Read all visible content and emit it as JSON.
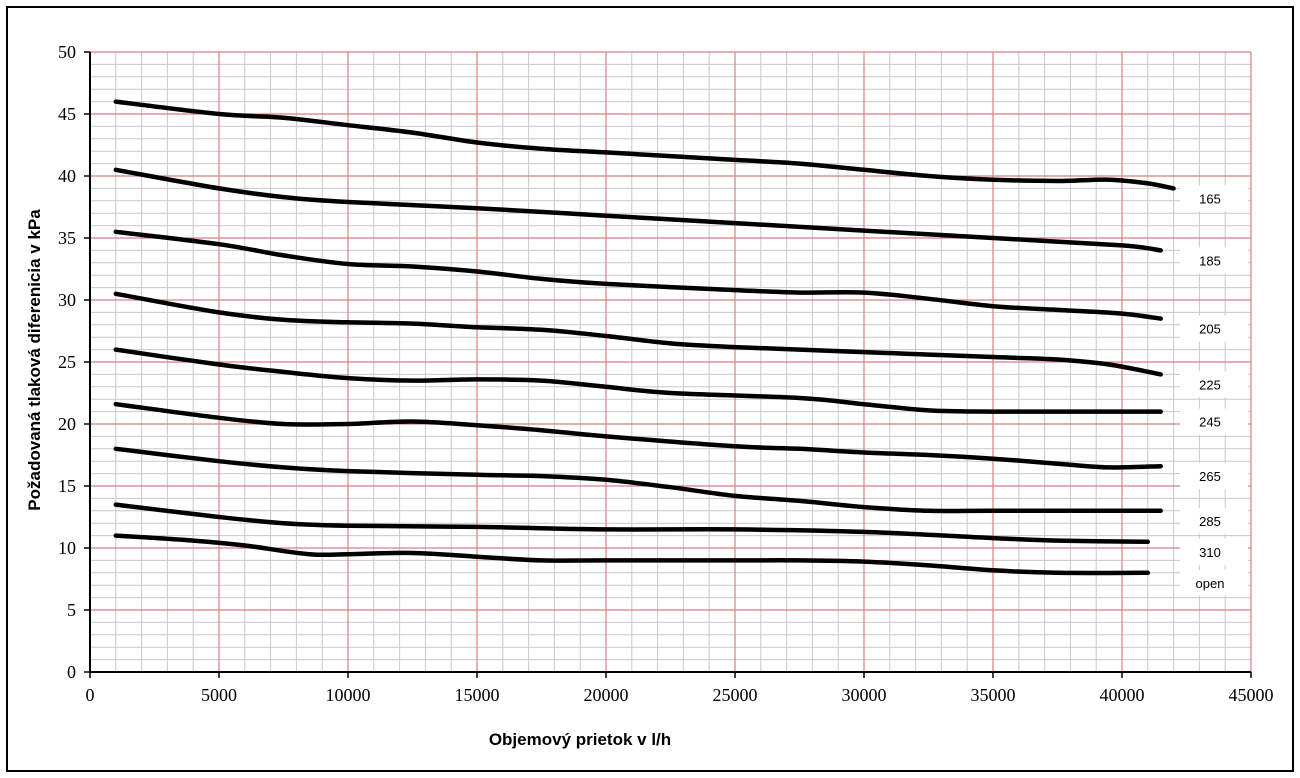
{
  "chart_data": {
    "type": "line",
    "title": "",
    "xlabel": "Objemový prietok v l/h",
    "ylabel": "Požadovaná tlaková diferenicia v kPa",
    "xlim": [
      0,
      45000
    ],
    "ylim": [
      0,
      50
    ],
    "x_ticks": [
      0,
      5000,
      10000,
      15000,
      20000,
      25000,
      30000,
      35000,
      40000,
      45000
    ],
    "y_ticks": [
      0,
      5,
      10,
      15,
      20,
      25,
      30,
      35,
      40,
      45,
      50
    ],
    "grid": "major red, minor grey",
    "legend": "labels at right end of each line",
    "line_color": "#000000",
    "major_grid_color": "#d88080",
    "minor_grid_color": "#c8c8c8",
    "series": [
      {
        "name": "165",
        "points": [
          [
            1000,
            46
          ],
          [
            5000,
            45
          ],
          [
            7500,
            44.7
          ],
          [
            10000,
            44.1
          ],
          [
            12500,
            43.5
          ],
          [
            15000,
            42.7
          ],
          [
            17500,
            42.2
          ],
          [
            20000,
            41.9
          ],
          [
            25000,
            41.3
          ],
          [
            27500,
            41
          ],
          [
            30000,
            40.5
          ],
          [
            32500,
            40
          ],
          [
            35000,
            39.7
          ],
          [
            37500,
            39.6
          ],
          [
            39500,
            39.7
          ],
          [
            41000,
            39.4
          ],
          [
            42000,
            39
          ]
        ]
      },
      {
        "name": "185",
        "points": [
          [
            1000,
            40.5
          ],
          [
            5000,
            39
          ],
          [
            7500,
            38.3
          ],
          [
            10000,
            37.9
          ],
          [
            15000,
            37.4
          ],
          [
            20000,
            36.8
          ],
          [
            25000,
            36.2
          ],
          [
            30000,
            35.6
          ],
          [
            35000,
            35
          ],
          [
            40000,
            34.4
          ],
          [
            41500,
            34
          ]
        ]
      },
      {
        "name": "205",
        "points": [
          [
            1000,
            35.5
          ],
          [
            5000,
            34.5
          ],
          [
            7500,
            33.6
          ],
          [
            10000,
            32.9
          ],
          [
            12500,
            32.7
          ],
          [
            15000,
            32.3
          ],
          [
            17500,
            31.7
          ],
          [
            20000,
            31.3
          ],
          [
            25000,
            30.8
          ],
          [
            27500,
            30.6
          ],
          [
            30000,
            30.6
          ],
          [
            32500,
            30.1
          ],
          [
            35000,
            29.5
          ],
          [
            37500,
            29.2
          ],
          [
            40000,
            28.9
          ],
          [
            41500,
            28.5
          ]
        ]
      },
      {
        "name": "225",
        "points": [
          [
            1000,
            30.5
          ],
          [
            5000,
            29
          ],
          [
            7500,
            28.4
          ],
          [
            10000,
            28.2
          ],
          [
            12500,
            28.1
          ],
          [
            15000,
            27.8
          ],
          [
            17500,
            27.6
          ],
          [
            20000,
            27.1
          ],
          [
            22500,
            26.5
          ],
          [
            25000,
            26.2
          ],
          [
            30000,
            25.8
          ],
          [
            35000,
            25.4
          ],
          [
            37500,
            25.2
          ],
          [
            39500,
            24.8
          ],
          [
            41500,
            24
          ]
        ]
      },
      {
        "name": "245",
        "points": [
          [
            1000,
            26
          ],
          [
            5000,
            24.8
          ],
          [
            7500,
            24.2
          ],
          [
            10000,
            23.7
          ],
          [
            12500,
            23.5
          ],
          [
            15000,
            23.6
          ],
          [
            17500,
            23.5
          ],
          [
            20000,
            23
          ],
          [
            22500,
            22.5
          ],
          [
            27500,
            22.1
          ],
          [
            30000,
            21.6
          ],
          [
            32500,
            21.1
          ],
          [
            35000,
            21
          ],
          [
            41500,
            21
          ]
        ]
      },
      {
        "name": "265",
        "points": [
          [
            1000,
            21.6
          ],
          [
            5000,
            20.5
          ],
          [
            7500,
            20
          ],
          [
            10000,
            20
          ],
          [
            12500,
            20.2
          ],
          [
            15000,
            19.9
          ],
          [
            17500,
            19.5
          ],
          [
            20000,
            19
          ],
          [
            25000,
            18.2
          ],
          [
            27500,
            18
          ],
          [
            30000,
            17.7
          ],
          [
            32500,
            17.5
          ],
          [
            35000,
            17.2
          ],
          [
            37500,
            16.8
          ],
          [
            39500,
            16.5
          ],
          [
            41500,
            16.6
          ]
        ]
      },
      {
        "name": "285",
        "points": [
          [
            1000,
            18
          ],
          [
            5000,
            17
          ],
          [
            7500,
            16.5
          ],
          [
            10000,
            16.2
          ],
          [
            15000,
            15.9
          ],
          [
            17500,
            15.8
          ],
          [
            20000,
            15.5
          ],
          [
            22500,
            14.9
          ],
          [
            25000,
            14.2
          ],
          [
            27500,
            13.8
          ],
          [
            30000,
            13.3
          ],
          [
            32500,
            13
          ],
          [
            35000,
            13
          ],
          [
            41500,
            13
          ]
        ]
      },
      {
        "name": "310",
        "points": [
          [
            1000,
            13.5
          ],
          [
            5000,
            12.5
          ],
          [
            7500,
            12
          ],
          [
            10000,
            11.8
          ],
          [
            15000,
            11.7
          ],
          [
            20000,
            11.5
          ],
          [
            25000,
            11.5
          ],
          [
            30000,
            11.3
          ],
          [
            35000,
            10.8
          ],
          [
            37500,
            10.6
          ],
          [
            41000,
            10.5
          ]
        ]
      },
      {
        "name": "open",
        "points": [
          [
            1000,
            11
          ],
          [
            4000,
            10.6
          ],
          [
            6000,
            10.2
          ],
          [
            8500,
            9.5
          ],
          [
            10000,
            9.5
          ],
          [
            12500,
            9.6
          ],
          [
            15000,
            9.3
          ],
          [
            17500,
            9
          ],
          [
            20000,
            9
          ],
          [
            25000,
            9
          ],
          [
            27500,
            9
          ],
          [
            30000,
            8.9
          ],
          [
            32500,
            8.6
          ],
          [
            35000,
            8.2
          ],
          [
            37500,
            8
          ],
          [
            41000,
            8
          ]
        ]
      }
    ]
  }
}
